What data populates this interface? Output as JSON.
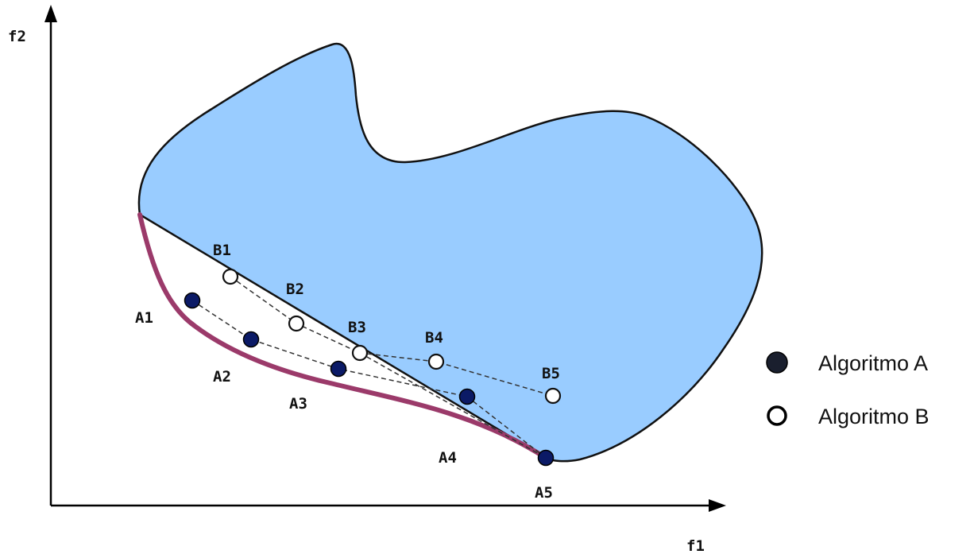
{
  "axes": {
    "x_label": "f1",
    "y_label": "f2"
  },
  "colors": {
    "region_fill": "#99ccff",
    "region_stroke": "#111111",
    "pareto_front": "#9b3a6a",
    "algorithm_a_fill": "#0b1a66",
    "algorithm_b_fill": "#ffffff",
    "legend_a_fill": "#1a1f2e"
  },
  "algorithm_a": {
    "points": [
      "A1",
      "A2",
      "A3",
      "A4",
      "A5"
    ]
  },
  "algorithm_b": {
    "points": [
      "B1",
      "B2",
      "B3",
      "B4",
      "B5"
    ]
  },
  "legend": {
    "algorithm_a_label": "Algoritmo A",
    "algorithm_b_label": "Algoritmo B",
    "algorithm_a_icon": "filled-circle",
    "algorithm_b_icon": "hollow-circle"
  }
}
